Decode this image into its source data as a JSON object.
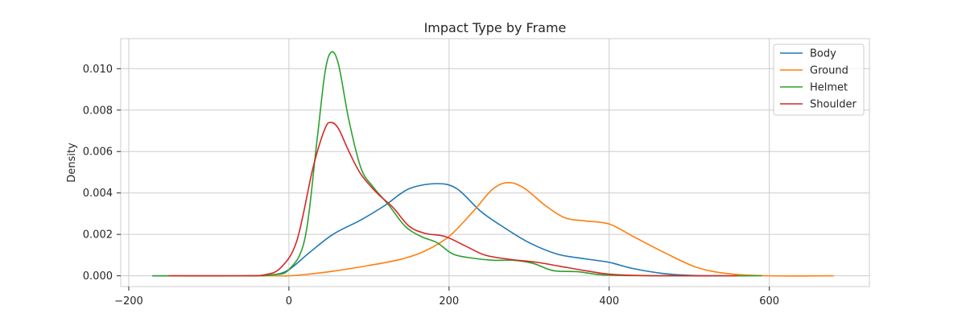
{
  "chart_data": {
    "type": "line",
    "title": "Impact Type by Frame",
    "xlabel": "",
    "ylabel": "Density",
    "xlim": [
      -210,
      725
    ],
    "ylim": [
      -0.00052,
      0.01145
    ],
    "xticks": [
      -200,
      0,
      200,
      400,
      600
    ],
    "xtick_labels": [
      "−200",
      "0",
      "200",
      "400",
      "600"
    ],
    "yticks": [
      0.0,
      0.002,
      0.004,
      0.006,
      0.008,
      0.01
    ],
    "ytick_labels": [
      "0.000",
      "0.002",
      "0.004",
      "0.006",
      "0.008",
      "0.010"
    ],
    "grid": true,
    "legend_position": "upper right",
    "series": [
      {
        "name": "Body",
        "color": "#1f77b4",
        "points": [
          [
            -170,
            0
          ],
          [
            -60,
            0
          ],
          [
            -20,
            5e-05
          ],
          [
            0,
            0.0003
          ],
          [
            25,
            0.0011
          ],
          [
            55,
            0.002
          ],
          [
            90,
            0.0027
          ],
          [
            120,
            0.0034
          ],
          [
            150,
            0.0042
          ],
          [
            185,
            0.00445
          ],
          [
            210,
            0.0042
          ],
          [
            240,
            0.0031
          ],
          [
            270,
            0.0023
          ],
          [
            300,
            0.0016
          ],
          [
            335,
            0.00105
          ],
          [
            370,
            0.00082
          ],
          [
            400,
            0.00065
          ],
          [
            430,
            0.00035
          ],
          [
            470,
            0.0001
          ],
          [
            510,
            1e-05
          ],
          [
            570,
            0
          ]
        ]
      },
      {
        "name": "Ground",
        "color": "#ff7f0e",
        "points": [
          [
            -150,
            0
          ],
          [
            -20,
            0
          ],
          [
            0,
            0
          ],
          [
            30,
            0.0001
          ],
          [
            60,
            0.00025
          ],
          [
            100,
            0.0005
          ],
          [
            140,
            0.0008
          ],
          [
            170,
            0.0012
          ],
          [
            200,
            0.0019
          ],
          [
            230,
            0.0031
          ],
          [
            255,
            0.0042
          ],
          [
            275,
            0.0045
          ],
          [
            295,
            0.0042
          ],
          [
            320,
            0.0034
          ],
          [
            345,
            0.0028
          ],
          [
            370,
            0.00265
          ],
          [
            400,
            0.0025
          ],
          [
            430,
            0.0019
          ],
          [
            470,
            0.0011
          ],
          [
            510,
            0.0004
          ],
          [
            550,
            0.0001
          ],
          [
            600,
            0
          ],
          [
            680,
            0
          ]
        ]
      },
      {
        "name": "Helmet",
        "color": "#2ca02c",
        "points": [
          [
            -170,
            0
          ],
          [
            -50,
            0
          ],
          [
            -20,
            5e-05
          ],
          [
            0,
            0.0003
          ],
          [
            20,
            0.0018
          ],
          [
            35,
            0.0065
          ],
          [
            45,
            0.0098
          ],
          [
            53,
            0.0108
          ],
          [
            62,
            0.0102
          ],
          [
            75,
            0.0075
          ],
          [
            90,
            0.0052
          ],
          [
            105,
            0.0043
          ],
          [
            125,
            0.0034
          ],
          [
            145,
            0.0024
          ],
          [
            165,
            0.0019
          ],
          [
            185,
            0.0016
          ],
          [
            205,
            0.00105
          ],
          [
            230,
            0.00085
          ],
          [
            255,
            0.00075
          ],
          [
            280,
            0.00075
          ],
          [
            305,
            0.0006
          ],
          [
            330,
            0.00025
          ],
          [
            360,
            0.0002
          ],
          [
            390,
            5e-05
          ],
          [
            430,
            1e-05
          ],
          [
            500,
            0
          ],
          [
            590,
            0
          ]
        ]
      },
      {
        "name": "Shoulder",
        "color": "#d62728",
        "points": [
          [
            -150,
            0
          ],
          [
            -60,
            0
          ],
          [
            -30,
            5e-05
          ],
          [
            -10,
            0.0004
          ],
          [
            10,
            0.0017
          ],
          [
            30,
            0.0052
          ],
          [
            45,
            0.0071
          ],
          [
            53,
            0.0074
          ],
          [
            62,
            0.0071
          ],
          [
            75,
            0.006
          ],
          [
            90,
            0.0049
          ],
          [
            110,
            0.004
          ],
          [
            130,
            0.0033
          ],
          [
            150,
            0.0024
          ],
          [
            170,
            0.00205
          ],
          [
            195,
            0.0019
          ],
          [
            220,
            0.00145
          ],
          [
            245,
            0.001
          ],
          [
            275,
            0.0008
          ],
          [
            310,
            0.00065
          ],
          [
            340,
            0.00045
          ],
          [
            370,
            0.00025
          ],
          [
            400,
            8e-05
          ],
          [
            440,
            1e-05
          ],
          [
            500,
            0
          ],
          [
            560,
            0
          ]
        ]
      }
    ]
  }
}
